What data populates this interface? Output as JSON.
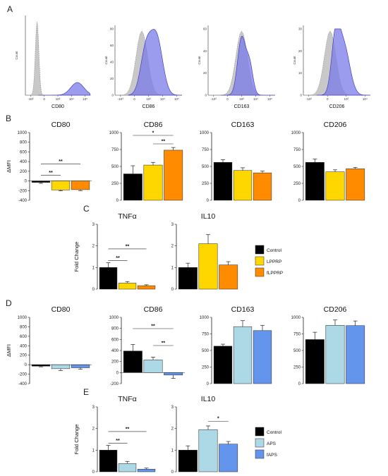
{
  "panel_labels": [
    "A",
    "B",
    "C",
    "D",
    "E"
  ],
  "colors": {
    "control": "#000000",
    "lpprp": "#FFD700",
    "flpprp": "#FF8C00",
    "aps": "#ADD8E6",
    "faps": "#6495ED",
    "histogram_fill": "#7B7BE8",
    "histogram_grey": "#C8C8C8"
  },
  "chart_data": [
    {
      "id": "A1",
      "type": "histogram",
      "xlabel": "CD80",
      "ylabel": "Count",
      "xticks": [
        "-10³",
        "0",
        "10³",
        "10⁴",
        "10⁵"
      ]
    },
    {
      "id": "A2",
      "type": "histogram",
      "xlabel": "CD86",
      "ylabel": "Count",
      "xticks": [
        "-10³",
        "0",
        "10³",
        "10⁴",
        "10⁵"
      ],
      "yticks": [
        "0",
        "20",
        "40",
        "60",
        "80"
      ]
    },
    {
      "id": "A3",
      "type": "histogram",
      "xlabel": "CD163",
      "ylabel": "Count",
      "xticks": [
        "-10³",
        "0",
        "10³",
        "10⁴",
        "10⁵"
      ],
      "yticks": [
        "0",
        "20",
        "40",
        "60"
      ]
    },
    {
      "id": "A4",
      "type": "histogram",
      "xlabel": "CD206",
      "ylabel": "Count",
      "xticks": [
        "-10³",
        "0",
        "10³",
        "10⁴"
      ],
      "yticks": [
        "0",
        "10",
        "20",
        "30"
      ]
    },
    {
      "id": "B1",
      "type": "bar",
      "title": "CD80",
      "ylabel": "ΔMFI",
      "ylim": [
        -400,
        1000
      ],
      "yticks": [
        "-400",
        "-200",
        "0",
        "200",
        "400",
        "600",
        "800",
        "1000"
      ],
      "categories": [
        "Control",
        "LPPRP",
        "fLPPRP"
      ],
      "values": [
        -30,
        -185,
        -180
      ],
      "errors": [
        20,
        20,
        20
      ],
      "sig": [
        {
          "from": 0,
          "to": 1,
          "label": "**"
        },
        {
          "from": 0,
          "to": 2,
          "label": "**"
        }
      ]
    },
    {
      "id": "B2",
      "type": "bar",
      "title": "CD86",
      "ylim": [
        0,
        1000
      ],
      "yticks": [
        "0",
        "250",
        "500",
        "750",
        "1000"
      ],
      "categories": [
        "Control",
        "LPPRP",
        "fLPPRP"
      ],
      "values": [
        390,
        520,
        740
      ],
      "errors": [
        120,
        40,
        40
      ],
      "sig": [
        {
          "from": 0,
          "to": 2,
          "label": "*"
        },
        {
          "from": 1,
          "to": 2,
          "label": "**"
        }
      ]
    },
    {
      "id": "B3",
      "type": "bar",
      "title": "CD163",
      "ylim": [
        0,
        1000
      ],
      "yticks": [
        "0",
        "250",
        "500",
        "750",
        "1000"
      ],
      "categories": [
        "Control",
        "LPPRP",
        "fLPPRP"
      ],
      "values": [
        560,
        440,
        405
      ],
      "errors": [
        40,
        40,
        25
      ]
    },
    {
      "id": "B4",
      "type": "bar",
      "title": "CD206",
      "ylim": [
        0,
        1000
      ],
      "yticks": [
        "0",
        "250",
        "500",
        "750",
        "1000"
      ],
      "categories": [
        "Control",
        "LPPRP",
        "fLPPRP"
      ],
      "values": [
        560,
        420,
        465
      ],
      "errors": [
        50,
        30,
        20
      ]
    },
    {
      "id": "C1",
      "type": "bar",
      "title": "TNFα",
      "ylabel": "Fold Change",
      "ylim": [
        0,
        3
      ],
      "yticks": [
        "0",
        "1",
        "2",
        "3"
      ],
      "categories": [
        "Control",
        "LPPRP",
        "fLPPRP"
      ],
      "values": [
        1.0,
        0.28,
        0.16
      ],
      "errors": [
        0.22,
        0.07,
        0.04
      ],
      "sig": [
        {
          "from": 0,
          "to": 1,
          "label": "**"
        },
        {
          "from": 0,
          "to": 2,
          "label": "**"
        }
      ]
    },
    {
      "id": "C2",
      "type": "bar",
      "title": "IL10",
      "ylim": [
        0,
        3
      ],
      "yticks": [
        "0",
        "1",
        "2",
        "3"
      ],
      "categories": [
        "Control",
        "LPPRP",
        "fLPPRP"
      ],
      "values": [
        1.0,
        2.1,
        1.12
      ],
      "errors": [
        0.2,
        0.42,
        0.15
      ]
    },
    {
      "id": "D1",
      "type": "bar",
      "title": "CD80",
      "ylabel": "ΔMFI",
      "ylim": [
        -400,
        1000
      ],
      "yticks": [
        "-400",
        "-200",
        "0",
        "200",
        "400",
        "600",
        "800",
        "1000"
      ],
      "categories": [
        "Control",
        "APS",
        "fAPS"
      ],
      "values": [
        -30,
        -85,
        -65
      ],
      "errors": [
        15,
        40,
        30
      ]
    },
    {
      "id": "D2",
      "type": "bar",
      "title": "CD86",
      "ylim": [
        -200,
        1000
      ],
      "yticks": [
        "-200",
        "0",
        "200",
        "400",
        "600",
        "800",
        "1000"
      ],
      "categories": [
        "Control",
        "APS",
        "fAPS"
      ],
      "values": [
        390,
        230,
        -45
      ],
      "errors": [
        120,
        50,
        60
      ],
      "sig": [
        {
          "from": 0,
          "to": 2,
          "label": "**"
        },
        {
          "from": 1,
          "to": 2,
          "label": "**"
        }
      ]
    },
    {
      "id": "D3",
      "type": "bar",
      "title": "CD163",
      "ylim": [
        0,
        1000
      ],
      "yticks": [
        "0",
        "250",
        "500",
        "750",
        "1000"
      ],
      "categories": [
        "Control",
        "APS",
        "fAPS"
      ],
      "values": [
        565,
        860,
        800
      ],
      "errors": [
        30,
        90,
        80
      ]
    },
    {
      "id": "D4",
      "type": "bar",
      "title": "CD206",
      "ylim": [
        0,
        1000
      ],
      "yticks": [
        "0",
        "250",
        "500",
        "750",
        "1000"
      ],
      "categories": [
        "Control",
        "APS",
        "fAPS"
      ],
      "values": [
        665,
        880,
        875
      ],
      "errors": [
        110,
        80,
        70
      ]
    },
    {
      "id": "E1",
      "type": "bar",
      "title": "TNFα",
      "ylabel": "Fold Change",
      "ylim": [
        0,
        3
      ],
      "yticks": [
        "0",
        "1",
        "2",
        "3"
      ],
      "categories": [
        "Control",
        "APS",
        "fAPS"
      ],
      "values": [
        1.0,
        0.38,
        0.12
      ],
      "errors": [
        0.22,
        0.1,
        0.05
      ],
      "sig": [
        {
          "from": 0,
          "to": 1,
          "label": "**"
        },
        {
          "from": 0,
          "to": 2,
          "label": "**"
        }
      ]
    },
    {
      "id": "E2",
      "type": "bar",
      "title": "IL10",
      "ylim": [
        0,
        3
      ],
      "yticks": [
        "0",
        "1",
        "2",
        "3"
      ],
      "categories": [
        "Control",
        "APS",
        "fAPS"
      ],
      "values": [
        1.0,
        1.95,
        1.28
      ],
      "errors": [
        0.2,
        0.17,
        0.12
      ],
      "sig": [
        {
          "from": 1,
          "to": 2,
          "label": "*"
        }
      ]
    }
  ],
  "legends": [
    {
      "id": "C",
      "entries": [
        {
          "label": "Control",
          "key": "control"
        },
        {
          "label": "LPPRP",
          "key": "lpprp"
        },
        {
          "label": "fLPPRP",
          "key": "flpprp"
        }
      ]
    },
    {
      "id": "E",
      "entries": [
        {
          "label": "Control",
          "key": "control"
        },
        {
          "label": "APS",
          "key": "aps"
        },
        {
          "label": "fAPS",
          "key": "faps"
        }
      ]
    }
  ]
}
